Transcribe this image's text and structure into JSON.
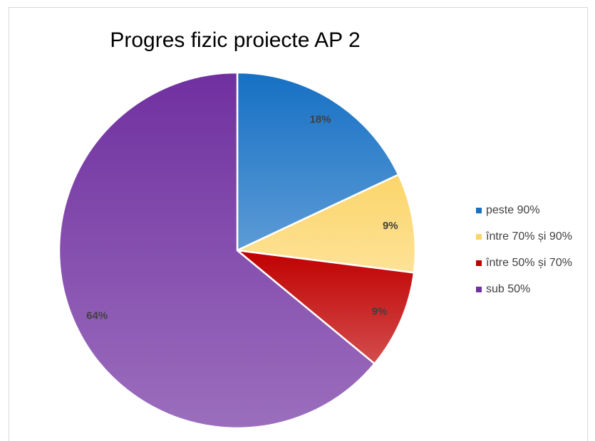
{
  "chart_data": {
    "type": "pie",
    "title": "Progres fizic proiecte AP 2",
    "categories": [
      "peste 90%",
      "între 70% și 90%",
      "între 50% și 70%",
      "sub 50%"
    ],
    "values": [
      18,
      9,
      9,
      64
    ],
    "value_labels": [
      "18%",
      "9%",
      "9%",
      "64%"
    ],
    "colors": [
      "#1670c4",
      "#fcd56a",
      "#c00000",
      "#7030a0"
    ],
    "legend": "right"
  }
}
